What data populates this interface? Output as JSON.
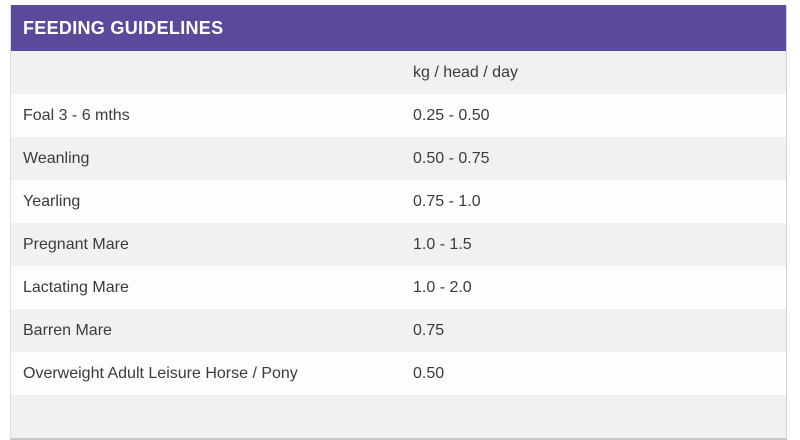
{
  "panel": {
    "title": "FEEDING GUIDELINES"
  },
  "table": {
    "label_column_header": "",
    "value_column_header": "kg / head / day",
    "rows": [
      {
        "label": "Foal 3 - 6 mths",
        "value": "0.25 - 0.50"
      },
      {
        "label": "Weanling",
        "value": "0.50 - 0.75"
      },
      {
        "label": "Yearling",
        "value": "0.75 - 1.0"
      },
      {
        "label": "Pregnant Mare",
        "value": "1.0 - 1.5"
      },
      {
        "label": "Lactating Mare",
        "value": "1.0 - 2.0"
      },
      {
        "label": "Barren Mare",
        "value": "0.75"
      },
      {
        "label": "Overweight Adult Leisure Horse / Pony",
        "value": "0.50"
      }
    ]
  },
  "colors": {
    "accent_purple": "#5b4a9b",
    "header_text": "#ffffff",
    "row_alt_gray": "#f1f1f1",
    "row_white": "#fdfdfd",
    "body_text": "#3b3b3b",
    "border": "#d6d6d6"
  }
}
